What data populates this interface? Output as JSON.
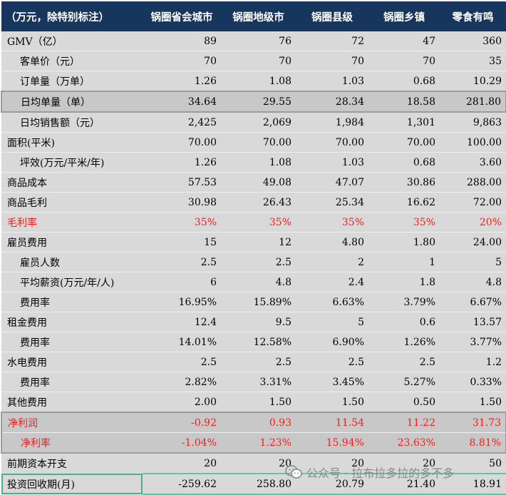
{
  "header": [
    "（万元，除特别标注）",
    "锅圈省会城市",
    "锅圈地级市",
    "锅圈县级",
    "锅圈乡镇",
    "零食有鸣"
  ],
  "rows": [
    {
      "label": "GMV（亿）",
      "values": [
        "89",
        "76",
        "72",
        "47",
        "360"
      ],
      "indent": false,
      "style": ""
    },
    {
      "label": "客单价（元）",
      "values": [
        "70",
        "70",
        "70",
        "70",
        "35"
      ],
      "indent": true,
      "style": ""
    },
    {
      "label": "订单量（万单）",
      "values": [
        "1.26",
        "1.08",
        "1.03",
        "0.68",
        "10.29"
      ],
      "indent": true,
      "style": ""
    },
    {
      "label": "日均单量（单）",
      "values": [
        "34.64",
        "29.55",
        "28.34",
        "18.58",
        "281.80"
      ],
      "indent": true,
      "style": "box box-top box-bot"
    },
    {
      "label": "日均销售额（元）",
      "values": [
        "2,425",
        "2,069",
        "1,984",
        "1,301",
        "9,863"
      ],
      "indent": true,
      "style": ""
    },
    {
      "label": "面积(平米)",
      "values": [
        "70.00",
        "70.00",
        "70.00",
        "70.00",
        "100.00"
      ],
      "indent": false,
      "style": ""
    },
    {
      "label": "坪效(万元/平米/年)",
      "values": [
        "1.26",
        "1.08",
        "1.03",
        "0.68",
        "3.60"
      ],
      "indent": true,
      "style": ""
    },
    {
      "label": "商品成本",
      "values": [
        "57.53",
        "49.08",
        "47.07",
        "30.86",
        "288.00"
      ],
      "indent": false,
      "style": ""
    },
    {
      "label": "商品毛利",
      "values": [
        "30.98",
        "26.43",
        "25.34",
        "16.62",
        "72.00"
      ],
      "indent": false,
      "style": ""
    },
    {
      "label": "毛利率",
      "values": [
        "35%",
        "35%",
        "35%",
        "35%",
        "20%"
      ],
      "indent": false,
      "style": "red"
    },
    {
      "label": "雇员费用",
      "values": [
        "15",
        "12",
        "4.80",
        "1.80",
        "24.00"
      ],
      "indent": false,
      "style": ""
    },
    {
      "label": "雇员人数",
      "values": [
        "2.5",
        "2.5",
        "2",
        "1",
        "5"
      ],
      "indent": true,
      "style": ""
    },
    {
      "label": "平均薪资(万元/年/人)",
      "values": [
        "6",
        "4.8",
        "2.4",
        "1.8",
        "4.8"
      ],
      "indent": true,
      "style": ""
    },
    {
      "label": "费用率",
      "values": [
        "16.95%",
        "15.89%",
        "6.63%",
        "3.79%",
        "6.67%"
      ],
      "indent": true,
      "style": ""
    },
    {
      "label": "租金费用",
      "values": [
        "12.4",
        "9.5",
        "5",
        "0.6",
        "13.57"
      ],
      "indent": false,
      "style": ""
    },
    {
      "label": "费用率",
      "values": [
        "14.01%",
        "12.58%",
        "6.90%",
        "1.26%",
        "3.77%"
      ],
      "indent": true,
      "style": ""
    },
    {
      "label": "水电费用",
      "values": [
        "2.5",
        "2.5",
        "2.5",
        "2.5",
        "1.2"
      ],
      "indent": false,
      "style": ""
    },
    {
      "label": "费用率",
      "values": [
        "2.82%",
        "3.31%",
        "3.45%",
        "5.27%",
        "0.33%"
      ],
      "indent": true,
      "style": ""
    },
    {
      "label": "其他费用",
      "values": [
        "2.00",
        "1.50",
        "1.50",
        "0.50",
        "1.50"
      ],
      "indent": false,
      "style": ""
    },
    {
      "label": "净利润",
      "values": [
        "-0.92",
        "0.93",
        "11.54",
        "11.22",
        "31.73"
      ],
      "indent": false,
      "style": "red box box-top"
    },
    {
      "label": "净利率",
      "values": [
        "-1.04%",
        "1.23%",
        "15.94%",
        "23.63%",
        "8.81%"
      ],
      "indent": true,
      "style": "red box box-bot"
    },
    {
      "label": "前期资本开支",
      "values": [
        "20",
        "20",
        "20",
        "20",
        "50"
      ],
      "indent": false,
      "style": ""
    },
    {
      "label": "投资回收期(月)",
      "values": [
        "-259.62",
        "258.80",
        "20.79",
        "21.40",
        "18.91"
      ],
      "indent": false,
      "style": "green-first green-val"
    }
  ],
  "watermark": {
    "text": "公众号 · 拉布拉多拉的多不多",
    "icon": "wechat-icon"
  }
}
